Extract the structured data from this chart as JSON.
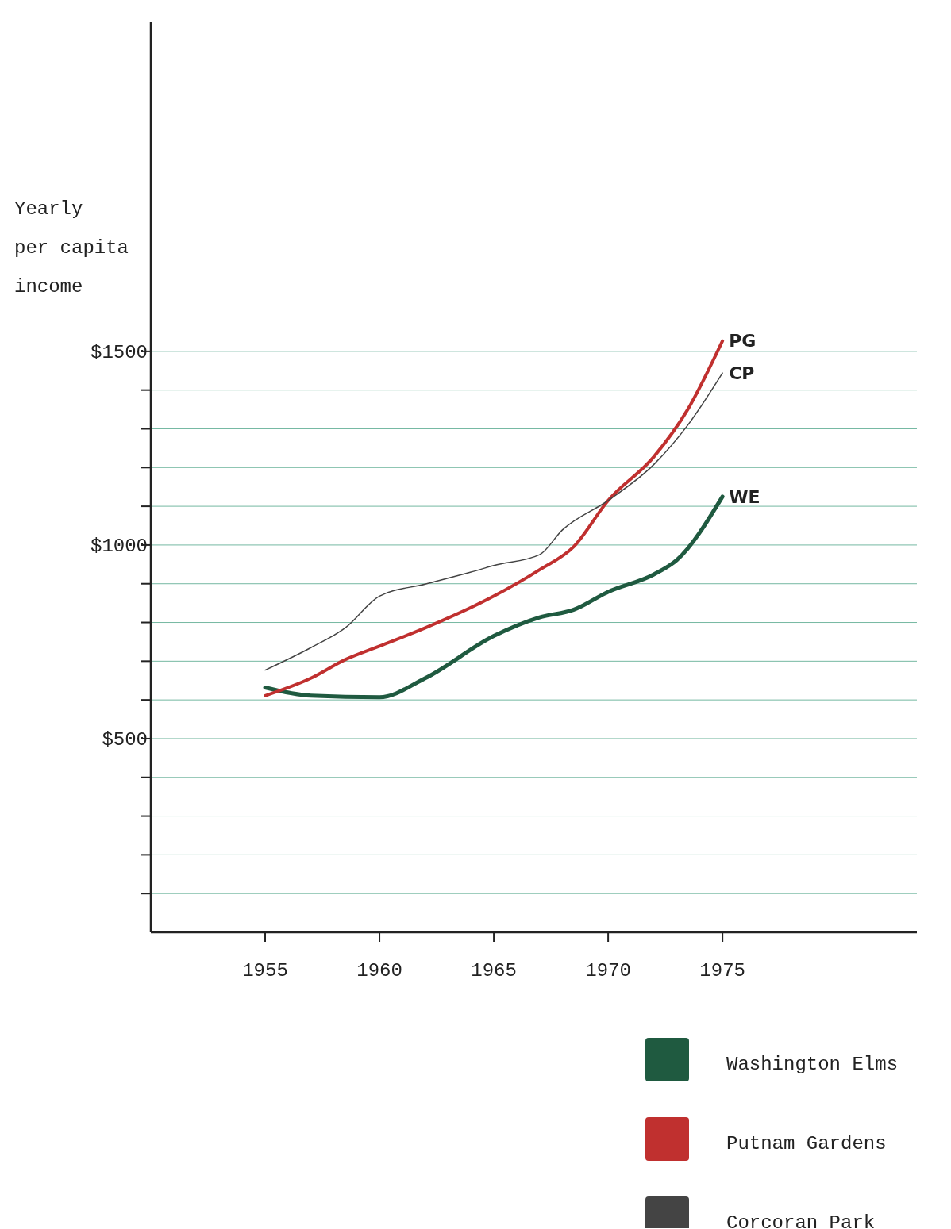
{
  "chart_data": {
    "type": "line",
    "ylabel": "Yearly\nper capita\nincome",
    "xlim": [
      1950,
      1983.5
    ],
    "xticks": [
      1955,
      1960,
      1965,
      1970,
      1975
    ],
    "ylim": [
      0,
      2350
    ],
    "yticks": [
      {
        "value": 100,
        "label": null
      },
      {
        "value": 200,
        "label": null
      },
      {
        "value": 300,
        "label": null
      },
      {
        "value": 400,
        "label": null
      },
      {
        "value": 500,
        "label": "$500"
      },
      {
        "value": 600,
        "label": null
      },
      {
        "value": 700,
        "label": null
      },
      {
        "value": 800,
        "label": null
      },
      {
        "value": 900,
        "label": null
      },
      {
        "value": 1000,
        "label": "$1000"
      },
      {
        "value": 1100,
        "label": null
      },
      {
        "value": 1200,
        "label": null
      },
      {
        "value": 1300,
        "label": null
      },
      {
        "value": 1400,
        "label": null
      },
      {
        "value": 1500,
        "label": "$1500"
      }
    ],
    "grid": "y",
    "legend": "bottom right",
    "marker": "none",
    "line_style": "solid",
    "series": [
      {
        "name": "Washington Elms",
        "color": "#1f5a40",
        "x": [
          1955,
          1957,
          1960,
          1962,
          1965,
          1967,
          1968.5,
          1970,
          1972,
          1973,
          1975
        ],
        "values": [
          632,
          611,
          607,
          656,
          765,
          813,
          833,
          879,
          924,
          961,
          1125
        ]
      },
      {
        "name": "Putnam Gardens",
        "color": "#c0302f",
        "x": [
          1955,
          1957,
          1958.5,
          1960,
          1962,
          1965,
          1967,
          1968.5,
          1970,
          1972,
          1973.5,
          1975
        ],
        "values": [
          611,
          656,
          704,
          739,
          786,
          868,
          936,
          996,
          1115,
          1228,
          1352,
          1527
        ]
      },
      {
        "name": "Corcoran Park",
        "color": "#444444",
        "x": [
          1955,
          1957,
          1958.5,
          1960,
          1962,
          1964,
          1965,
          1967,
          1968,
          1970,
          1972,
          1973.5,
          1975
        ],
        "values": [
          677,
          735,
          786,
          868,
          899,
          930,
          947,
          975,
          1039,
          1115,
          1208,
          1311,
          1444
        ]
      }
    ],
    "annotations": [
      "WE",
      "PG",
      "CP"
    ]
  }
}
